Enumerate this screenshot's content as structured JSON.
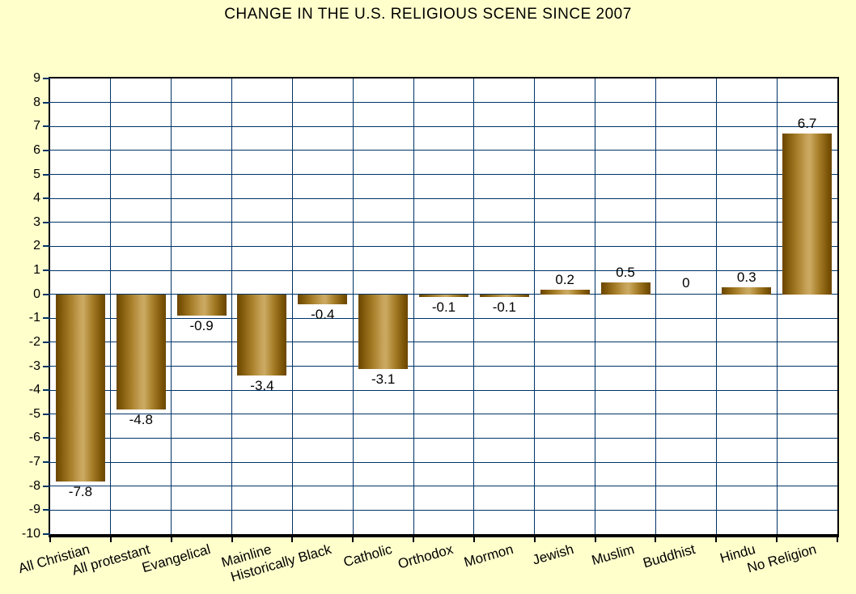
{
  "chart_data": {
    "type": "bar",
    "title": "CHANGE IN THE U.S. RELIGIOUS SCENE SINCE 2007",
    "categories": [
      "All Christian",
      "All protestant",
      "Evangelical",
      "Mainline",
      "Historically Black",
      "Catholic",
      "Orthodox",
      "Mormon",
      "Jewish",
      "Muslim",
      "Buddhist",
      "Hindu",
      "No Religion"
    ],
    "values": [
      -7.8,
      -4.8,
      -0.9,
      -3.4,
      -0.4,
      -3.1,
      -0.1,
      -0.1,
      0.2,
      0.5,
      0,
      0.3,
      6.7
    ],
    "value_labels": [
      "-7.8",
      "-4.8",
      "-0.9",
      "-3.4",
      "-0.4",
      "-3.1",
      "-0.1",
      "-0.1",
      "0.2",
      "0.5",
      "0",
      "0.3",
      "6.7"
    ],
    "xlabel": "",
    "ylabel": "",
    "ylim": [
      -10,
      9
    ],
    "ytick_step": 1,
    "ytick_labels": [
      "9",
      "8",
      "7",
      "6",
      "5",
      "4",
      "3",
      "2",
      "1",
      "0",
      "-1",
      "-2",
      "-3",
      "-4",
      "-5",
      "-6",
      "-7",
      "-8",
      "-9",
      "-10"
    ],
    "grid": true,
    "legend": false,
    "colors": {
      "background": "#FFFFCC",
      "plot_background": "#FFFFFF",
      "gridline": "#003366",
      "axis": "#000000",
      "text": "#000000"
    }
  }
}
